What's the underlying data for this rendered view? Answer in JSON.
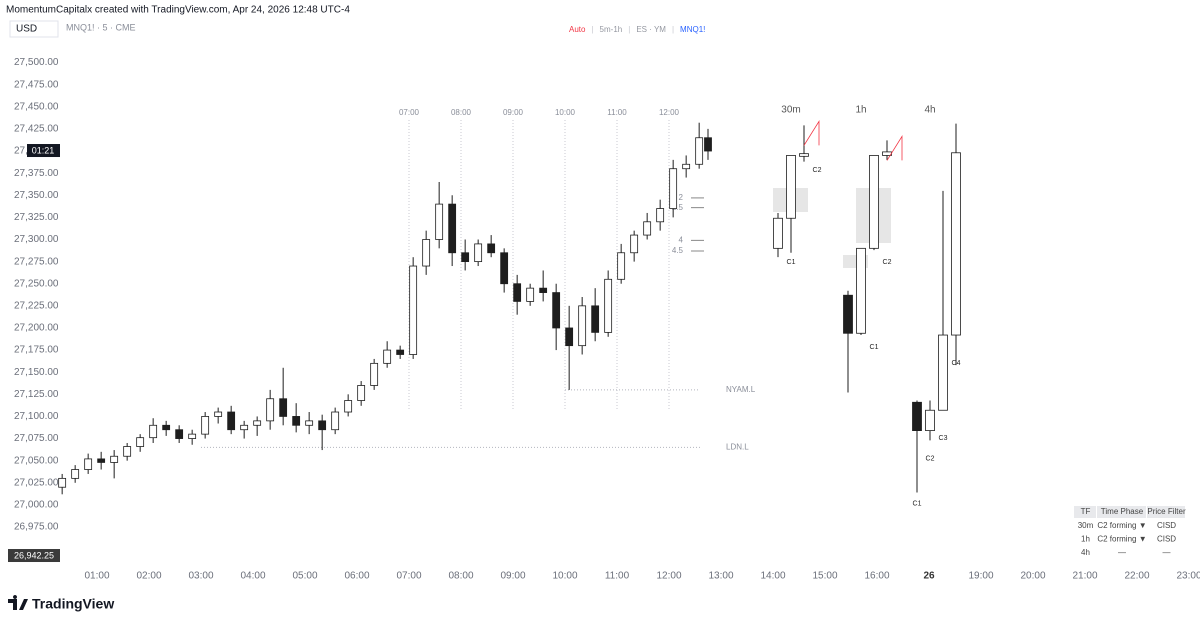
{
  "header": {
    "attribution": "MomentumCapitalx created with TradingView.com, Apr 24, 2026 12:48 UTC-4",
    "currency": "USD",
    "symbol": "MNQ1! · 5 · CME",
    "indicator_legend": [
      {
        "label": "Auto",
        "color": "#f23645"
      },
      {
        "label": "|",
        "color": "#c8cad0"
      },
      {
        "label": "5m-1h",
        "color": "#9598a1"
      },
      {
        "label": "|",
        "color": "#c8cad0"
      },
      {
        "label": "ES · YM",
        "color": "#9598a1"
      },
      {
        "label": "|",
        "color": "#c8cad0"
      },
      {
        "label": "MNQ1!",
        "color": "#2962ff"
      }
    ]
  },
  "footer": {
    "brand": "TradingView"
  },
  "chart_data": {
    "type": "candlestick",
    "x": [
      0.33,
      0.58,
      0.83,
      1.08,
      1.33,
      1.58,
      1.83,
      2.08,
      2.33,
      2.58,
      2.83,
      3.08,
      3.33,
      3.58,
      3.83,
      4.08,
      4.33,
      4.58,
      4.83,
      5.08,
      5.33,
      5.58,
      5.83,
      6.08,
      6.33,
      6.58,
      6.83,
      7.08,
      7.33,
      7.58,
      7.83,
      8.08,
      8.33,
      8.58,
      8.83,
      9.08,
      9.33,
      9.58,
      9.83,
      10.08,
      10.33,
      10.58,
      10.83,
      11.08,
      11.33,
      11.58,
      11.83,
      12.08,
      12.33,
      12.58,
      12.75
    ],
    "open": [
      27020,
      27030,
      27040,
      27052,
      27048,
      27055,
      27066,
      27076,
      27090,
      27085,
      27075,
      27080,
      27100,
      27105,
      27085,
      27090,
      27095,
      27120,
      27100,
      27090,
      27095,
      27085,
      27105,
      27118,
      27135,
      27160,
      27175,
      27170,
      27270,
      27300,
      27340,
      27285,
      27275,
      27295,
      27285,
      27250,
      27230,
      27245,
      27240,
      27200,
      27180,
      27225,
      27195,
      27255,
      27285,
      27305,
      27320,
      27335,
      27380,
      27385,
      27415
    ],
    "high": [
      27035,
      27045,
      27058,
      27060,
      27062,
      27070,
      27080,
      27098,
      27095,
      27090,
      27085,
      27105,
      27110,
      27112,
      27095,
      27100,
      27130,
      27155,
      27115,
      27105,
      27102,
      27110,
      27125,
      27140,
      27165,
      27185,
      27180,
      27280,
      27310,
      27365,
      27350,
      27300,
      27300,
      27305,
      27290,
      27260,
      27250,
      27265,
      27250,
      27225,
      27235,
      27245,
      27265,
      27295,
      27310,
      27330,
      27345,
      27390,
      27395,
      27432,
      27425
    ],
    "low": [
      27012,
      27025,
      27035,
      27040,
      27030,
      27050,
      27060,
      27070,
      27078,
      27070,
      27068,
      27075,
      27092,
      27080,
      27075,
      27078,
      27085,
      27090,
      27082,
      27080,
      27062,
      27080,
      27100,
      27112,
      27130,
      27155,
      27165,
      27165,
      27260,
      27290,
      27270,
      27265,
      27270,
      27280,
      27240,
      27215,
      27225,
      27230,
      27175,
      27130,
      27170,
      27185,
      27190,
      27250,
      27275,
      27300,
      27310,
      27325,
      27370,
      27380,
      27390
    ],
    "close": [
      27030,
      27040,
      27052,
      27048,
      27055,
      27066,
      27076,
      27090,
      27085,
      27075,
      27080,
      27100,
      27105,
      27085,
      27090,
      27095,
      27120,
      27100,
      27090,
      27095,
      27085,
      27105,
      27118,
      27135,
      27160,
      27175,
      27170,
      27270,
      27300,
      27340,
      27285,
      27275,
      27295,
      27285,
      27250,
      27230,
      27245,
      27240,
      27200,
      27180,
      27225,
      27195,
      27255,
      27285,
      27305,
      27320,
      27335,
      27380,
      27385,
      27415,
      27400
    ],
    "up_color": "#ffffff",
    "down_color": "#1e1e1e",
    "wick_color": "#1e1e1e",
    "ylim": [
      26940,
      27530
    ],
    "yticks": [
      {
        "value": 26975,
        "label": "26,975.00"
      },
      {
        "value": 27000,
        "label": "27,000.00"
      },
      {
        "value": 27025,
        "label": "27,025.00"
      },
      {
        "value": 27050,
        "label": "27,050.00"
      },
      {
        "value": 27075,
        "label": "27,075.00"
      },
      {
        "value": 27100,
        "label": "27,100.00"
      },
      {
        "value": 27125,
        "label": "27,125.00"
      },
      {
        "value": 27150,
        "label": "27,150.00"
      },
      {
        "value": 27175,
        "label": "27,175.00"
      },
      {
        "value": 27200,
        "label": "27,200.00"
      },
      {
        "value": 27225,
        "label": "27,225.00"
      },
      {
        "value": 27250,
        "label": "27,250.00"
      },
      {
        "value": 27275,
        "label": "27,275.00"
      },
      {
        "value": 27300,
        "label": "27,300.00"
      },
      {
        "value": 27325,
        "label": "27,325.00"
      },
      {
        "value": 27350,
        "label": "27,350.00"
      },
      {
        "value": 27375,
        "label": "27,375.00"
      },
      {
        "value": 27400,
        "label": "27,400.00"
      },
      {
        "value": 27425,
        "label": "27,425.00"
      },
      {
        "value": 27450,
        "label": "27,450.00"
      },
      {
        "value": 27475,
        "label": "27,475.00"
      },
      {
        "value": 27500,
        "label": "27,500.00"
      }
    ],
    "xlim": [
      0,
      22
    ],
    "xticks": [
      {
        "value": 1,
        "label": "01:00"
      },
      {
        "value": 2,
        "label": "02:00"
      },
      {
        "value": 3,
        "label": "03:00"
      },
      {
        "value": 4,
        "label": "04:00"
      },
      {
        "value": 5,
        "label": "05:00"
      },
      {
        "value": 6,
        "label": "06:00"
      },
      {
        "value": 7,
        "label": "07:00"
      },
      {
        "value": 8,
        "label": "08:00"
      },
      {
        "value": 9,
        "label": "09:00"
      },
      {
        "value": 10,
        "label": "10:00"
      },
      {
        "value": 11,
        "label": "11:00"
      },
      {
        "value": 12,
        "label": "12:00"
      },
      {
        "value": 13,
        "label": "13:00"
      },
      {
        "value": 14,
        "label": "14:00"
      },
      {
        "value": 15,
        "label": "15:00"
      },
      {
        "value": 16,
        "label": "16:00"
      },
      {
        "value": 17,
        "label": "26"
      },
      {
        "value": 18,
        "label": "19:00"
      },
      {
        "value": 19,
        "label": "20:00"
      },
      {
        "value": 20,
        "label": "21:00"
      },
      {
        "value": 21,
        "label": "22:00"
      },
      {
        "value": 22,
        "label": "23:00"
      }
    ],
    "session_lines": [
      {
        "x": 7,
        "label": "07:00"
      },
      {
        "x": 8,
        "label": "08:00"
      },
      {
        "x": 9,
        "label": "09:00"
      },
      {
        "x": 10,
        "label": "10:00"
      },
      {
        "x": 11,
        "label": "11:00"
      },
      {
        "x": 12,
        "label": "12:00"
      }
    ],
    "levels": [
      {
        "label": "NYAM.L",
        "value": 27130,
        "x_start": 10.0
      },
      {
        "label": "LDN.L",
        "value": 27065,
        "x_start": 3.0
      }
    ],
    "target_levels": [
      {
        "label": "2",
        "value": 27347
      },
      {
        "label": "2.5",
        "value": 27336
      },
      {
        "label": "4",
        "value": 27299
      },
      {
        "label": "4.5",
        "value": 27287
      }
    ],
    "countdown": {
      "label": "01:21",
      "value": 27400
    },
    "price_tag": {
      "label": "26,942.25",
      "value": 26942.25
    },
    "htf": [
      {
        "name": "30m",
        "candles": [
          {
            "open": 27290,
            "high": 27330,
            "low": 27280,
            "close": 27324,
            "label": "C1"
          },
          {
            "open": 27324,
            "high": 27395,
            "low": 27285,
            "close": 27395
          },
          {
            "open": 27394,
            "high": 27429,
            "low": 27388,
            "close": 27397,
            "label": "C2"
          }
        ]
      },
      {
        "name": "1h",
        "candles": [
          {
            "open": 27237,
            "high": 27242,
            "low": 27127,
            "close": 27194
          },
          {
            "open": 27194,
            "high": 27290,
            "low": 27192,
            "close": 27290,
            "label": "C1"
          },
          {
            "open": 27290,
            "high": 27395,
            "low": 27288,
            "close": 27395,
            "label": "C2"
          },
          {
            "open": 27395,
            "high": 27412,
            "low": 27390,
            "close": 27399
          }
        ]
      },
      {
        "name": "4h",
        "candles": [
          {
            "open": 27116,
            "high": 27118,
            "low": 27014,
            "close": 27084,
            "label": "C1"
          },
          {
            "open": 27084,
            "high": 27118,
            "low": 27073,
            "close": 27107,
            "label": "C2"
          },
          {
            "open": 27107,
            "high": 27355,
            "low": 27107,
            "close": 27192,
            "label": "C3"
          },
          {
            "open": 27192,
            "high": 27431,
            "low": 27158,
            "close": 27398,
            "label": "C4"
          }
        ]
      }
    ]
  },
  "table": {
    "header": [
      "TF",
      "Time Phase",
      "Price Filter"
    ],
    "rows": [
      [
        "30m",
        "C2 forming ▼",
        "CISD"
      ],
      [
        "1h",
        "C2 forming ▼",
        "CISD"
      ],
      [
        "4h",
        "—",
        "—"
      ]
    ]
  }
}
